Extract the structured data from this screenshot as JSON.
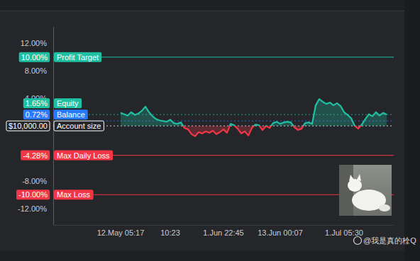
{
  "chart_data": {
    "type": "line",
    "x": [
      0,
      1,
      2,
      3,
      4,
      5,
      6,
      7,
      8,
      9,
      10,
      11,
      12,
      13,
      14,
      15,
      16,
      17,
      18,
      19,
      20,
      21,
      22,
      23,
      24,
      25,
      26,
      27,
      28,
      29,
      30,
      31,
      32,
      33,
      34,
      35,
      36,
      37,
      38,
      39,
      40,
      41,
      42,
      43,
      44,
      45,
      46,
      47,
      48,
      49,
      50,
      51,
      52,
      53,
      54,
      55,
      56,
      57,
      58,
      59,
      60,
      61,
      62,
      63,
      64,
      65,
      66,
      67,
      68,
      69,
      70,
      71,
      72,
      73,
      74,
      75
    ],
    "series": [
      {
        "color": "#1fbfa2",
        "values": [
          1.9,
          1.7,
          1.5,
          2.0,
          1.6,
          1.8,
          2.2,
          2.8,
          2.0,
          1.4,
          1.0,
          0.8,
          0.7,
          0.6,
          0.9,
          0.4,
          0.3,
          0.5,
          -0.3,
          -0.5,
          -1.2,
          -1.5,
          -0.9,
          -1.1,
          -0.8,
          -1.0,
          -0.7,
          -1.2,
          -0.9,
          -0.5,
          -1.0,
          0.3,
          0.1,
          -0.4,
          -1.1,
          -0.8,
          -1.4,
          -0.3,
          0.2,
          0.1,
          -0.6,
          0.0,
          -0.3,
          0.4,
          0.6,
          0.3,
          0.5,
          0.6,
          0.5,
          -0.2,
          -0.6,
          -0.4,
          0.4,
          0.5,
          0.3,
          3.0,
          3.9,
          3.5,
          3.2,
          3.4,
          3.0,
          3.3,
          2.9,
          2.0,
          1.6,
          1.1,
          0.0,
          -0.4,
          0.2,
          1.0,
          1.7,
          1.4,
          2.0,
          1.5,
          1.9,
          1.65
        ]
      }
    ],
    "xlim": [
      -19,
      77
    ],
    "xticks": [
      {
        "value": 0,
        "label": "12.May 05:17"
      },
      {
        "value": 14,
        "label": "10:23"
      },
      {
        "value": 29,
        "label": "1.Jun 22:45"
      },
      {
        "value": 45,
        "label": "13.Jun 00:07"
      },
      {
        "value": 63,
        "label": "1.Jul 05:30"
      }
    ],
    "ylim": [
      -14.4,
      14.4
    ],
    "yticks": [
      {
        "value": 12,
        "label": "12.00%"
      },
      {
        "value": 8,
        "label": "8.00%"
      },
      {
        "value": 4,
        "label": "4.00%"
      },
      {
        "value": -8,
        "label": "-8.00%"
      },
      {
        "value": -12,
        "label": "-12.00%"
      }
    ],
    "grid": false,
    "reference_lines": [
      {
        "name": "Profit Target",
        "value": 10,
        "label": "10.00%",
        "color": "#1fbfa2",
        "line_style": "solid"
      },
      {
        "name": "Equity",
        "value": 1.65,
        "label": "1.65%",
        "color": "#1fbfa2",
        "line_style": "dotted"
      },
      {
        "name": "Balance",
        "value": 0.72,
        "label": "0.72%",
        "color": "#2979ff",
        "line_style": "dotted"
      },
      {
        "name": "Account size",
        "value": 0,
        "label": "$10,000.00",
        "color": "#ffffff",
        "line_style": "dotted"
      },
      {
        "name": "Max Daily Loss",
        "value": -4.28,
        "label": "-4.28%",
        "color": "#f23645",
        "line_style": "solid"
      },
      {
        "name": "Max Loss",
        "value": -10,
        "label": "-10.00%",
        "color": "#f23645",
        "line_style": "solid"
      }
    ],
    "watermark": "@我是真的栓Q"
  }
}
